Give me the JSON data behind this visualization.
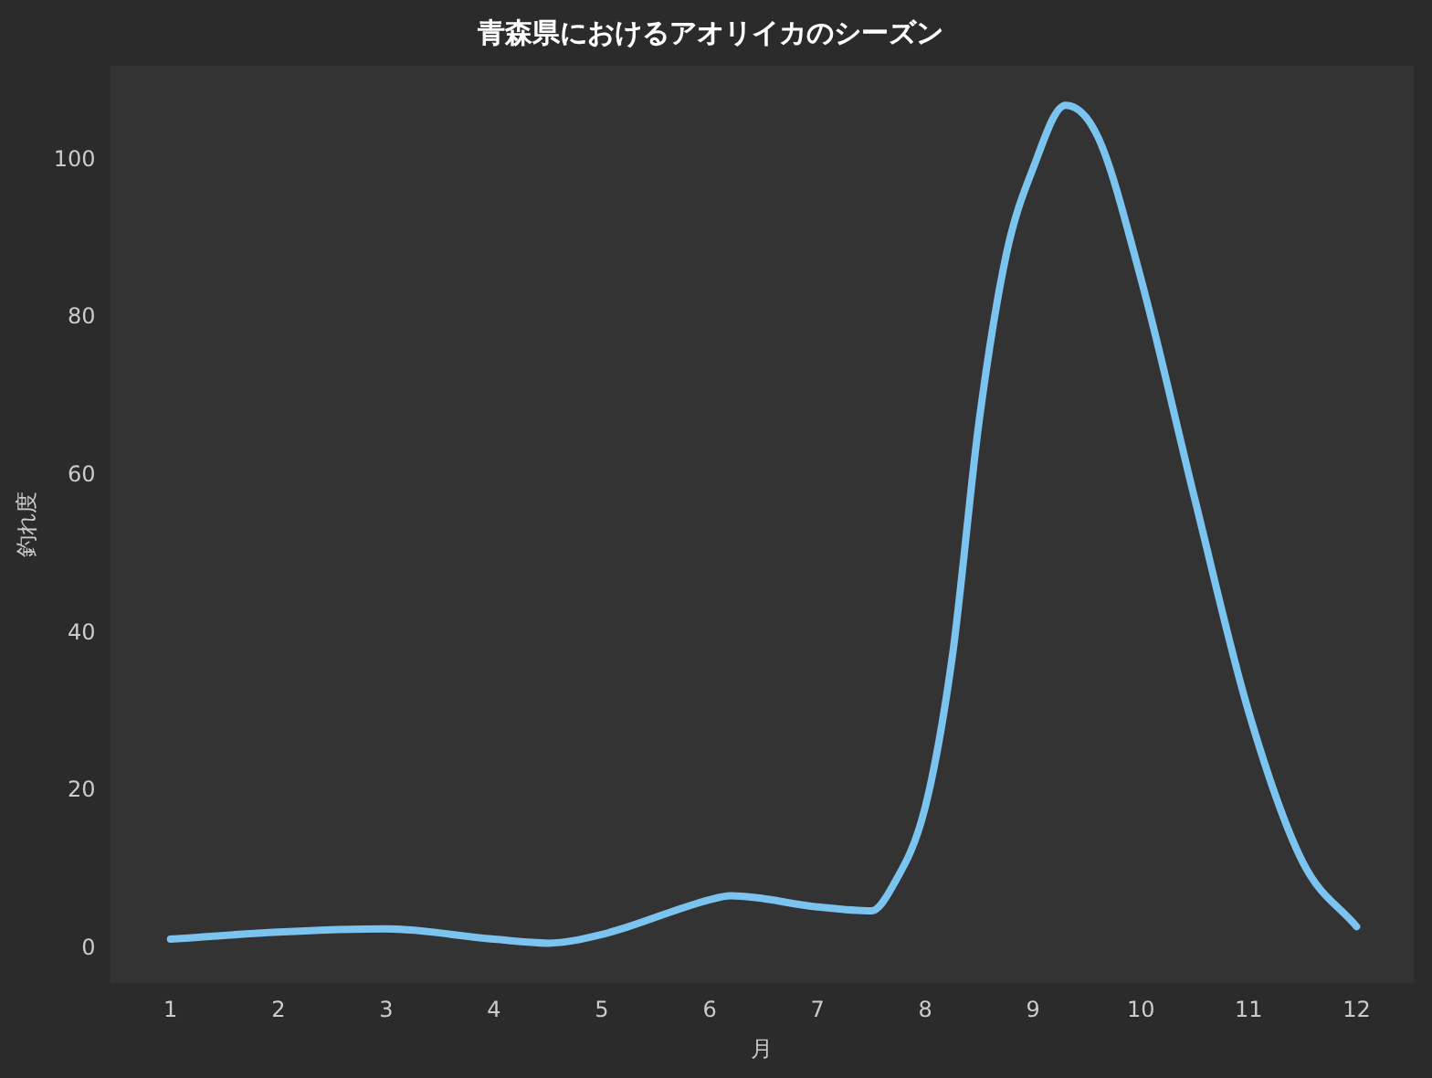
{
  "chart_data": {
    "type": "line",
    "title": "青森県におけるアオリイカのシーズン",
    "xlabel": "月",
    "ylabel": "釣れ度",
    "series": [
      {
        "color": "#7cc4f0",
        "x": [
          1,
          2,
          3,
          4,
          4.5,
          5,
          6,
          6.2,
          7,
          7.5,
          7.7,
          8,
          8.25,
          8.5,
          8.75,
          9,
          9.3,
          9.6,
          10,
          10.5,
          11,
          11.5,
          12
        ],
        "values": [
          1.2,
          2.1,
          2.5,
          1.2,
          0.7,
          1.8,
          6.2,
          6.7,
          5.3,
          4.8,
          8,
          18,
          37,
          67,
          88,
          99,
          107,
          103,
          85,
          57,
          30,
          11,
          2.8
        ]
      }
    ],
    "xlim": [
      0.44,
      12.53
    ],
    "xticks": [
      1,
      2,
      3,
      4,
      5,
      6,
      7,
      8,
      9,
      10,
      11,
      12
    ],
    "ylim": [
      -4.4,
      112
    ],
    "yticks": [
      0,
      20,
      40,
      60,
      80,
      100
    ],
    "grid": false,
    "legend": false,
    "marker": "none",
    "line_style": "solid"
  }
}
